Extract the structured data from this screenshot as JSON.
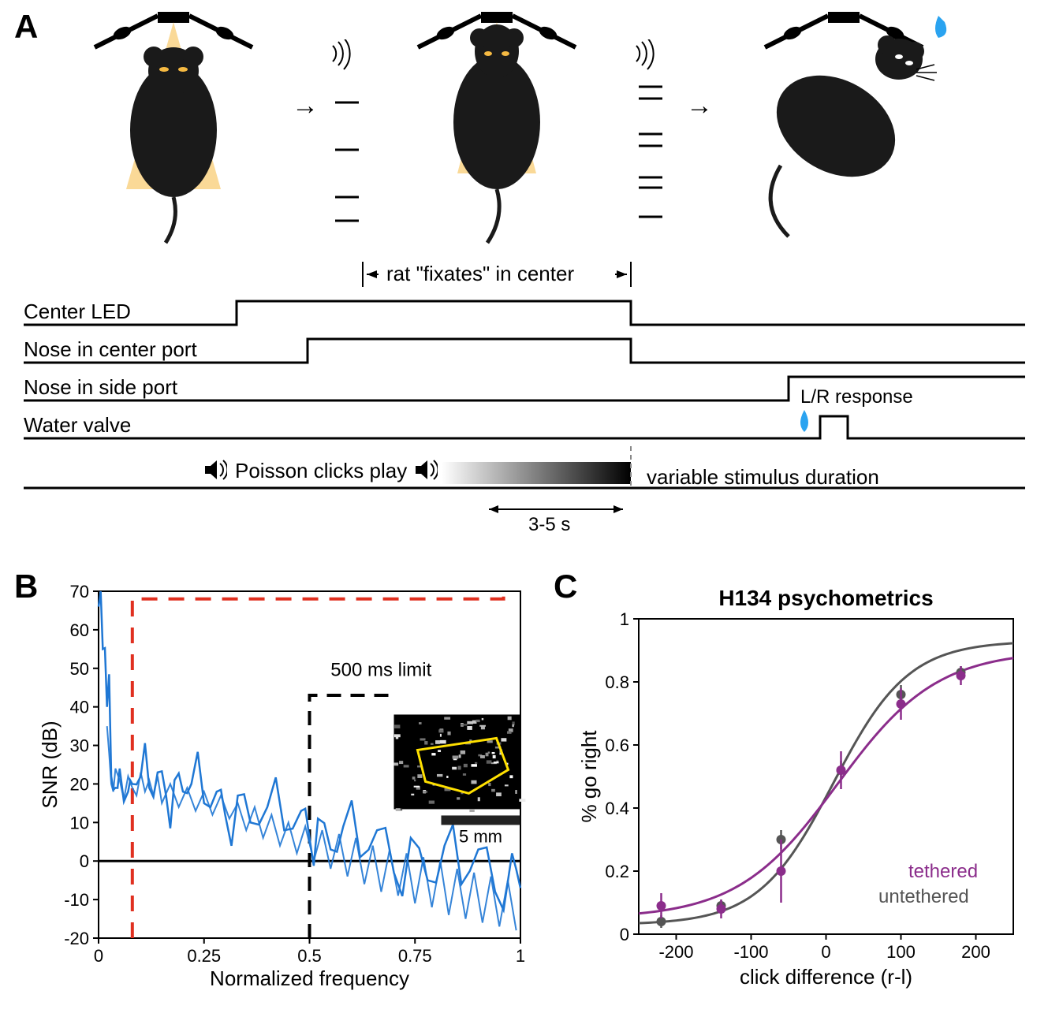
{
  "panelLetters": {
    "A": "A",
    "B": "B",
    "C": "C"
  },
  "panelA": {
    "fixateLabel": "rat \"fixates\" in center",
    "timingLabels": {
      "centerLED": "Center LED",
      "noseCenter": "Nose in center port",
      "noseSide": "Nose in side port",
      "waterValve": "Water valve",
      "lrResponse": "L/R response"
    },
    "poissonLabel": "Poisson clicks play",
    "variableDuration": "variable stimulus duration",
    "durationWindow": "3-5 s",
    "glowColor": "#f5b942",
    "ratColor": "#1a1a1a"
  },
  "panelB": {
    "type": "line",
    "title": "",
    "xlabel": "Normalized frequency",
    "ylabel": "SNR (dB)",
    "ylim": [
      -20,
      70
    ],
    "yticks": [
      -20,
      -10,
      0,
      10,
      20,
      30,
      40,
      50,
      60,
      70
    ],
    "xlim": [
      0,
      1
    ],
    "xticks": [
      0,
      0.25,
      0.5,
      0.75,
      1
    ],
    "line_color": "#1f77d4",
    "annotation": "500 ms limit",
    "red_dash_color": "#e03020",
    "black_dash_color": "#000000",
    "scalebar_label": "5 mm",
    "data": {
      "x": [
        0,
        0.01,
        0.02,
        0.03,
        0.04,
        0.05,
        0.07,
        0.08,
        0.1,
        0.12,
        0.14,
        0.16,
        0.18,
        0.2,
        0.22,
        0.25,
        0.28,
        0.3,
        0.33,
        0.36,
        0.4,
        0.44,
        0.48,
        0.5,
        0.52,
        0.55,
        0.58,
        0.62,
        0.66,
        0.7,
        0.74,
        0.78,
        0.82,
        0.86,
        0.9,
        0.94,
        0.98,
        1.0
      ],
      "y": [
        66,
        55,
        40,
        22,
        19,
        24,
        18,
        20,
        22,
        19,
        23,
        17,
        21,
        18,
        20,
        15,
        18,
        12,
        17,
        10,
        14,
        8,
        13,
        6,
        11,
        3,
        9,
        1,
        8,
        -3,
        6,
        -5,
        4,
        -6,
        3,
        -8,
        2,
        -7
      ]
    },
    "noise": {
      "x": [
        0.02,
        0.025,
        0.03,
        0.035,
        0.04,
        0.05,
        0.06,
        0.07,
        0.08,
        0.09,
        0.1,
        0.11,
        0.12,
        0.13,
        0.14,
        0.15,
        0.17,
        0.19,
        0.21,
        0.23,
        0.25,
        0.27,
        0.29,
        0.31,
        0.33,
        0.35,
        0.37,
        0.39,
        0.41,
        0.43,
        0.45,
        0.47,
        0.49,
        0.51,
        0.53,
        0.55,
        0.57,
        0.59,
        0.61,
        0.63,
        0.65,
        0.67,
        0.69,
        0.71,
        0.73,
        0.75,
        0.77,
        0.79,
        0.81,
        0.83,
        0.85,
        0.87,
        0.89,
        0.91,
        0.93,
        0.95,
        0.97,
        0.99
      ],
      "y": [
        35,
        28,
        20,
        18,
        24,
        21,
        16,
        22,
        19,
        17,
        23,
        18,
        21,
        17,
        22,
        15,
        20,
        14,
        19,
        13,
        18,
        12,
        17,
        11,
        15,
        8,
        14,
        6,
        12,
        4,
        10,
        2,
        9,
        0,
        8,
        -2,
        7,
        -4,
        6,
        -6,
        4,
        -8,
        3,
        -9,
        2,
        -11,
        1,
        -12,
        0,
        -14,
        -2,
        -15,
        -3,
        -16,
        -4,
        -17,
        -5,
        -18
      ]
    }
  },
  "panelC": {
    "type": "scatter",
    "title": "H134 psychometrics",
    "xlabel": "click difference (r-l)",
    "ylabel": "% go right",
    "xlim": [
      -250,
      250
    ],
    "xticks": [
      -200,
      -100,
      0,
      100,
      200
    ],
    "ylim": [
      0,
      1
    ],
    "yticks": [
      0,
      0.2,
      0.4,
      0.6,
      0.8,
      1
    ],
    "series": {
      "tethered": {
        "color": "#8b2d8b",
        "label": "tethered"
      },
      "untethered": {
        "color": "#555555",
        "label": "untethered"
      }
    },
    "untethered_points": {
      "x": [
        -220,
        -140,
        -60,
        20,
        100,
        180
      ],
      "y": [
        0.04,
        0.09,
        0.3,
        0.52,
        0.76,
        0.83
      ],
      "err": [
        0.02,
        0.02,
        0.03,
        0.03,
        0.03,
        0.02
      ]
    },
    "tethered_points": {
      "x": [
        -220,
        -140,
        -60,
        20,
        100,
        180
      ],
      "y": [
        0.09,
        0.08,
        0.2,
        0.52,
        0.73,
        0.82
      ],
      "err": [
        0.04,
        0.03,
        0.1,
        0.06,
        0.05,
        0.03
      ]
    }
  }
}
